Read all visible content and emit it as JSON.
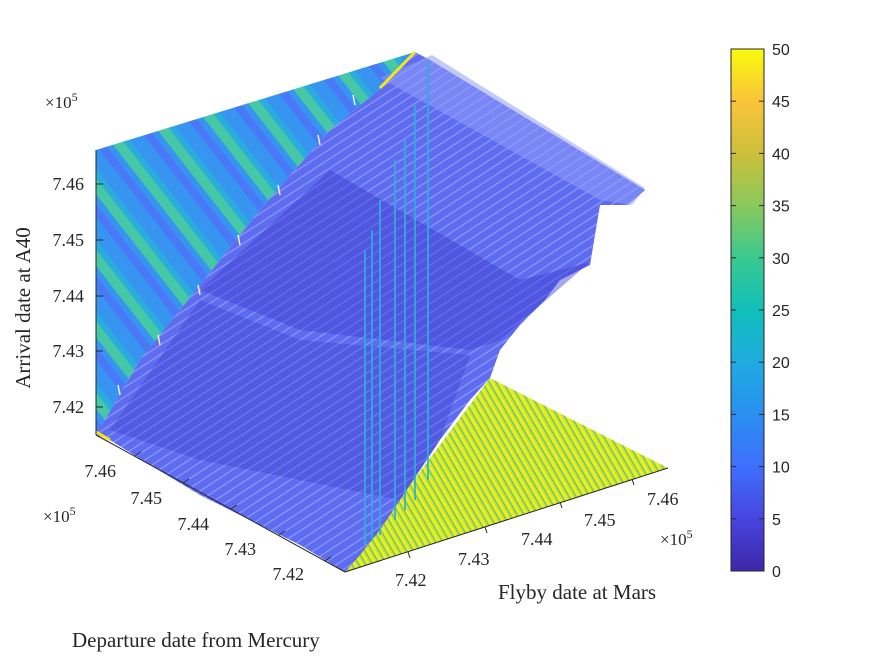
{
  "chart_data": {
    "type": "surface",
    "xlabel": "Departure date from Mercury",
    "ylabel": "Flyby date at Mars",
    "zlabel": "Arrival date at A40",
    "x_ticks": [
      "7.42",
      "7.43",
      "7.44",
      "7.45",
      "7.46"
    ],
    "y_ticks": [
      "7.42",
      "7.43",
      "7.44",
      "7.45",
      "7.46"
    ],
    "z_ticks": [
      "7.42",
      "7.43",
      "7.44",
      "7.45",
      "7.46"
    ],
    "x_exponent": "×10",
    "y_exponent": "×10",
    "z_exponent": "×10",
    "exponent_power": "5",
    "x_range": [
      7.415,
      7.467
    ],
    "y_range": [
      7.415,
      7.467
    ],
    "z_range": [
      7.415,
      7.467
    ],
    "grid": false,
    "colormap": "parula",
    "colorbar": {
      "ticks": [
        "0",
        "5",
        "10",
        "15",
        "20",
        "25",
        "30",
        "35",
        "40",
        "45",
        "50"
      ],
      "range": [
        0,
        50
      ]
    }
  }
}
